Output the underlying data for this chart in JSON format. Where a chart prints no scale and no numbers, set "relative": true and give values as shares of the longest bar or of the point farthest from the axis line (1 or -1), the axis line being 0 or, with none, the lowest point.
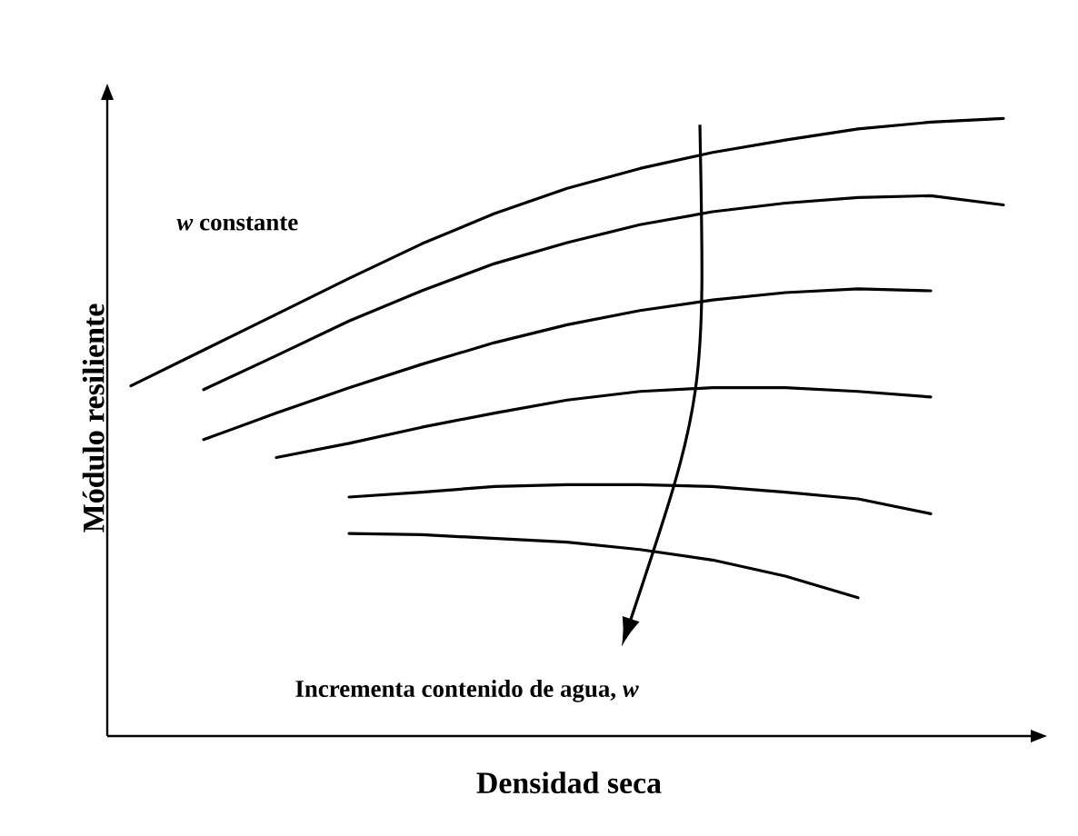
{
  "chart_data": {
    "type": "line",
    "relative": true,
    "xlabel": "Densidad seca",
    "ylabel": "Módulo resiliente",
    "marker": "none",
    "annotations": [
      "*w* constante",
      "Incrementa contenido de agua, *w*"
    ],
    "categories": [
      null,
      null,
      null,
      null,
      null,
      null,
      null,
      null,
      null,
      null,
      null,
      null,
      null
    ],
    "series": [
      {
        "color": "#000000",
        "values": [
          0.567,
          0.625,
          0.683,
          0.741,
          0.797,
          0.846,
          0.887,
          0.919,
          0.945,
          0.965,
          0.983,
          0.994,
          1
        ]
      },
      {
        "color": "#000000",
        "values": [
          null,
          0.561,
          0.616,
          0.672,
          0.721,
          0.765,
          0.799,
          0.828,
          0.849,
          0.863,
          0.872,
          0.875,
          0.86
        ]
      },
      {
        "color": "#000000",
        "values": [
          null,
          0.48,
          0.523,
          0.564,
          0.602,
          0.637,
          0.666,
          0.689,
          0.706,
          0.718,
          0.724,
          0.721,
          null
        ]
      },
      {
        "color": "#000000",
        "values": [
          null,
          null,
          0.451,
          0.474,
          0.5,
          0.523,
          0.544,
          0.558,
          0.564,
          0.564,
          0.558,
          0.549,
          null
        ]
      },
      {
        "color": "#000000",
        "values": [
          null,
          null,
          null,
          0.387,
          0.395,
          0.404,
          0.407,
          0.407,
          0.404,
          0.395,
          0.384,
          0.36,
          null
        ]
      },
      {
        "color": "#000000",
        "values": [
          null,
          null,
          null,
          0.328,
          0.326,
          0.32,
          0.314,
          0.302,
          0.285,
          0.259,
          0.224,
          null,
          null
        ]
      }
    ]
  }
}
